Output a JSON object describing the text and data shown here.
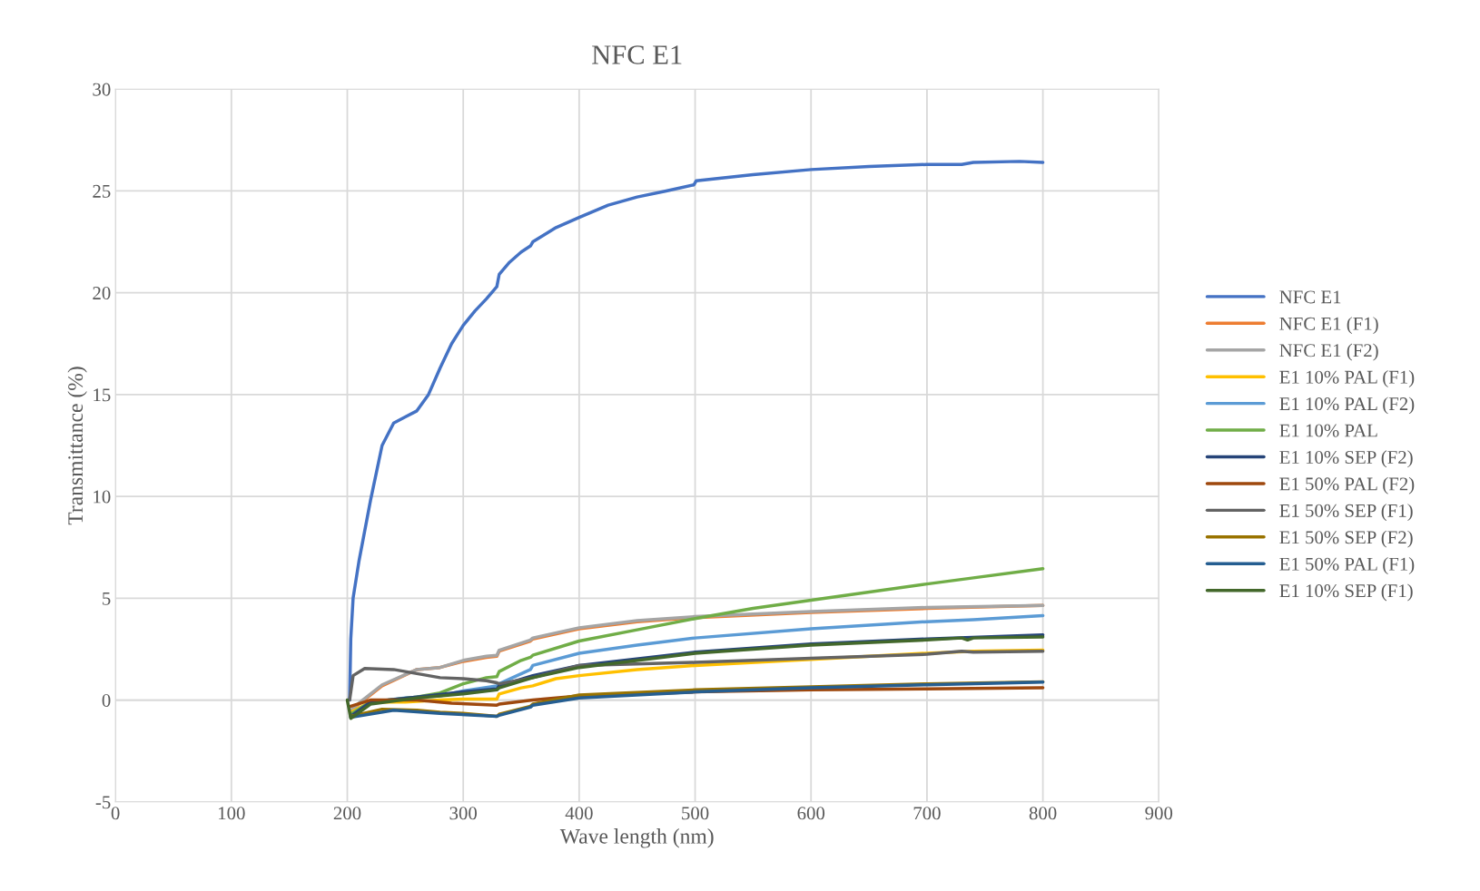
{
  "chart_data": {
    "type": "line",
    "title": "NFC E1",
    "xlabel": "Wave length (nm)",
    "ylabel": "Transmittance (%)",
    "xlim": [
      0,
      900
    ],
    "xticks": [
      0,
      100,
      200,
      300,
      400,
      500,
      600,
      700,
      800,
      900
    ],
    "ylim": [
      -5,
      30
    ],
    "yticks": [
      -5,
      0,
      5,
      10,
      15,
      20,
      25,
      30
    ],
    "grid": true,
    "legend": "right",
    "marker": "none",
    "line_style": "solid",
    "series": [
      {
        "name": "NFC E1",
        "color": "#4472c4",
        "x": [
          202,
          203,
          205,
          210,
          220,
          230,
          240,
          250,
          260,
          270,
          280,
          290,
          300,
          310,
          320,
          329,
          331,
          340,
          350,
          358,
          360,
          380,
          400,
          425,
          450,
          475,
          499,
          501,
          550,
          600,
          650,
          700,
          730,
          740,
          780,
          800
        ],
        "values": [
          0,
          3,
          5,
          6.8,
          9.8,
          12.5,
          13.6,
          13.9,
          14.2,
          15,
          16.3,
          17.5,
          18.4,
          19.1,
          19.7,
          20.3,
          20.9,
          21.5,
          22,
          22.3,
          22.5,
          23.2,
          23.7,
          24.3,
          24.7,
          25,
          25.3,
          25.5,
          25.8,
          26.05,
          26.2,
          26.3,
          26.3,
          26.4,
          26.45,
          26.4
        ]
      },
      {
        "name": "NFC E1 (F1)",
        "color": "#ed7d31",
        "x": [
          203,
          210,
          230,
          260,
          280,
          300,
          320,
          329,
          331,
          358,
          360,
          400,
          450,
          500,
          600,
          700,
          800
        ],
        "values": [
          -0.5,
          -0.2,
          0.7,
          1.5,
          1.6,
          1.9,
          2.1,
          2.15,
          2.4,
          2.9,
          3.0,
          3.5,
          3.85,
          4.05,
          4.3,
          4.5,
          4.65
        ]
      },
      {
        "name": "NFC E1 (F2)",
        "color": "#a5a5a5",
        "x": [
          203,
          210,
          230,
          260,
          280,
          300,
          320,
          329,
          331,
          358,
          360,
          400,
          450,
          500,
          600,
          700,
          800
        ],
        "values": [
          -0.5,
          -0.15,
          0.75,
          1.5,
          1.6,
          1.95,
          2.15,
          2.2,
          2.45,
          2.95,
          3.05,
          3.55,
          3.9,
          4.1,
          4.35,
          4.55,
          4.65
        ]
      },
      {
        "name": "E1 10% PAL (F1)",
        "color": "#ffc000",
        "x": [
          203,
          220,
          250,
          280,
          300,
          329,
          331,
          350,
          360,
          380,
          400,
          450,
          500,
          600,
          700,
          740,
          800
        ],
        "values": [
          -0.6,
          -0.1,
          -0.1,
          0,
          0.05,
          0.05,
          0.3,
          0.6,
          0.7,
          1.05,
          1.2,
          1.5,
          1.7,
          2.0,
          2.3,
          2.4,
          2.45
        ]
      },
      {
        "name": "E1 10% PAL (F2)",
        "color": "#5b9bd5",
        "x": [
          203,
          220,
          250,
          280,
          300,
          329,
          331,
          358,
          360,
          400,
          450,
          500,
          600,
          700,
          740,
          800
        ],
        "values": [
          -0.7,
          -0.1,
          0.1,
          0.2,
          0.45,
          0.7,
          0.8,
          1.5,
          1.7,
          2.3,
          2.7,
          3.05,
          3.5,
          3.85,
          3.95,
          4.15
        ]
      },
      {
        "name": "E1 10% PAL",
        "color": "#70ad47",
        "x": [
          203,
          220,
          260,
          280,
          300,
          320,
          329,
          331,
          350,
          358,
          360,
          400,
          450,
          500,
          550,
          600,
          700,
          740,
          800
        ],
        "values": [
          -0.7,
          -0.1,
          0.15,
          0.35,
          0.8,
          1.1,
          1.15,
          1.4,
          1.95,
          2.1,
          2.2,
          2.9,
          3.45,
          4.0,
          4.5,
          4.9,
          5.7,
          6.0,
          6.45
        ]
      },
      {
        "name": "E1 10% SEP (F2)",
        "color": "#264478",
        "x": [
          203,
          220,
          260,
          300,
          329,
          331,
          360,
          400,
          500,
          600,
          700,
          800
        ],
        "values": [
          -0.8,
          -0.1,
          0.15,
          0.4,
          0.55,
          0.7,
          1.2,
          1.7,
          2.35,
          2.75,
          3.0,
          3.2
        ]
      },
      {
        "name": "E1 50% PAL (F2)",
        "color": "#9e480e",
        "x": [
          203,
          220,
          260,
          290,
          329,
          331,
          360,
          400,
          500,
          600,
          700,
          800
        ],
        "values": [
          -0.3,
          0,
          0,
          -0.15,
          -0.25,
          -0.2,
          0,
          0.2,
          0.4,
          0.5,
          0.55,
          0.6
        ]
      },
      {
        "name": "E1 50% SEP (F1)",
        "color": "#636363",
        "x": [
          202,
          205,
          215,
          240,
          260,
          280,
          300,
          320,
          329,
          331,
          360,
          400,
          500,
          600,
          700,
          730,
          740,
          800
        ],
        "values": [
          0,
          1.2,
          1.55,
          1.5,
          1.3,
          1.1,
          1.05,
          0.95,
          0.85,
          0.8,
          1.1,
          1.7,
          1.85,
          2.05,
          2.25,
          2.4,
          2.35,
          2.4
        ]
      },
      {
        "name": "E1 50% SEP (F2)",
        "color": "#997300",
        "x": [
          203,
          230,
          260,
          280,
          300,
          329,
          331,
          358,
          360,
          400,
          500,
          600,
          700,
          800
        ],
        "values": [
          -0.8,
          -0.45,
          -0.5,
          -0.6,
          -0.65,
          -0.8,
          -0.7,
          -0.3,
          -0.2,
          0.25,
          0.5,
          0.65,
          0.8,
          0.9
        ]
      },
      {
        "name": "E1 50% PAL (F1)",
        "color": "#255e91",
        "x": [
          203,
          240,
          280,
          329,
          331,
          358,
          360,
          400,
          500,
          600,
          700,
          800
        ],
        "values": [
          -0.85,
          -0.5,
          -0.65,
          -0.8,
          -0.75,
          -0.35,
          -0.25,
          0.1,
          0.4,
          0.6,
          0.75,
          0.88
        ]
      },
      {
        "name": "E1 10% SEP (F1)",
        "color": "#43682b",
        "x": [
          200,
          203,
          220,
          260,
          300,
          329,
          331,
          360,
          400,
          500,
          600,
          700,
          730,
          735,
          740,
          800
        ],
        "values": [
          0,
          -0.9,
          -0.2,
          0.1,
          0.3,
          0.5,
          0.6,
          1.1,
          1.6,
          2.3,
          2.7,
          2.95,
          3.05,
          2.95,
          3.05,
          3.1
        ]
      }
    ]
  }
}
